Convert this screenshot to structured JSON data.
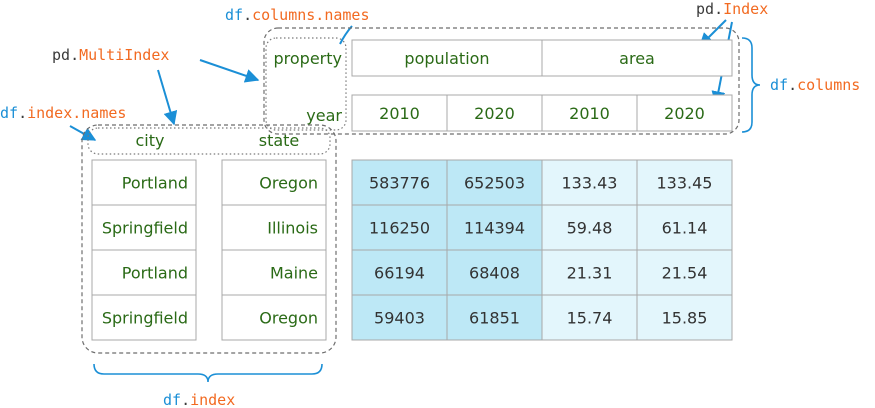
{
  "labels": {
    "columns_names": {
      "prefix": "df",
      "dot": ".",
      "suffix": "columns.names"
    },
    "multiindex": {
      "prefix": "pd",
      "dot": ".",
      "suffix": "MultiIndex"
    },
    "index_names": {
      "prefix": "df",
      "dot": ".",
      "suffix": "index.names"
    },
    "pd_index": {
      "prefix": "pd",
      "dot": ".",
      "suffix": "Index"
    },
    "df_columns": {
      "prefix": "df",
      "dot": ".",
      "suffix": "columns"
    },
    "df_index": {
      "prefix": "df",
      "dot": ".",
      "suffix": "index"
    }
  },
  "column_names": {
    "level0": "property",
    "level1": "year"
  },
  "index_names": {
    "level0": "city",
    "level1": "state"
  },
  "column_level0": [
    "population",
    "area"
  ],
  "column_level1": [
    "2010",
    "2020",
    "2010",
    "2020"
  ],
  "index_rows": [
    {
      "city": "Portland",
      "state": "Oregon"
    },
    {
      "city": "Springfield",
      "state": "Illinois"
    },
    {
      "city": "Portland",
      "state": "Maine"
    },
    {
      "city": "Springfield",
      "state": "Oregon"
    }
  ],
  "values": [
    [
      "583776",
      "652503",
      "133.43",
      "133.45"
    ],
    [
      "116250",
      "114394",
      "59.48",
      "61.14"
    ],
    [
      "66194",
      "68408",
      "21.31",
      "21.54"
    ],
    [
      "59403",
      "61851",
      "15.74",
      "15.85"
    ]
  ],
  "colors": {
    "population_fill": "#bde8f6",
    "area_fill": "#e3f6fc",
    "label_green": "#2a6a16",
    "accent_blue": "#1b8fd6",
    "accent_orange": "#f26a21"
  }
}
